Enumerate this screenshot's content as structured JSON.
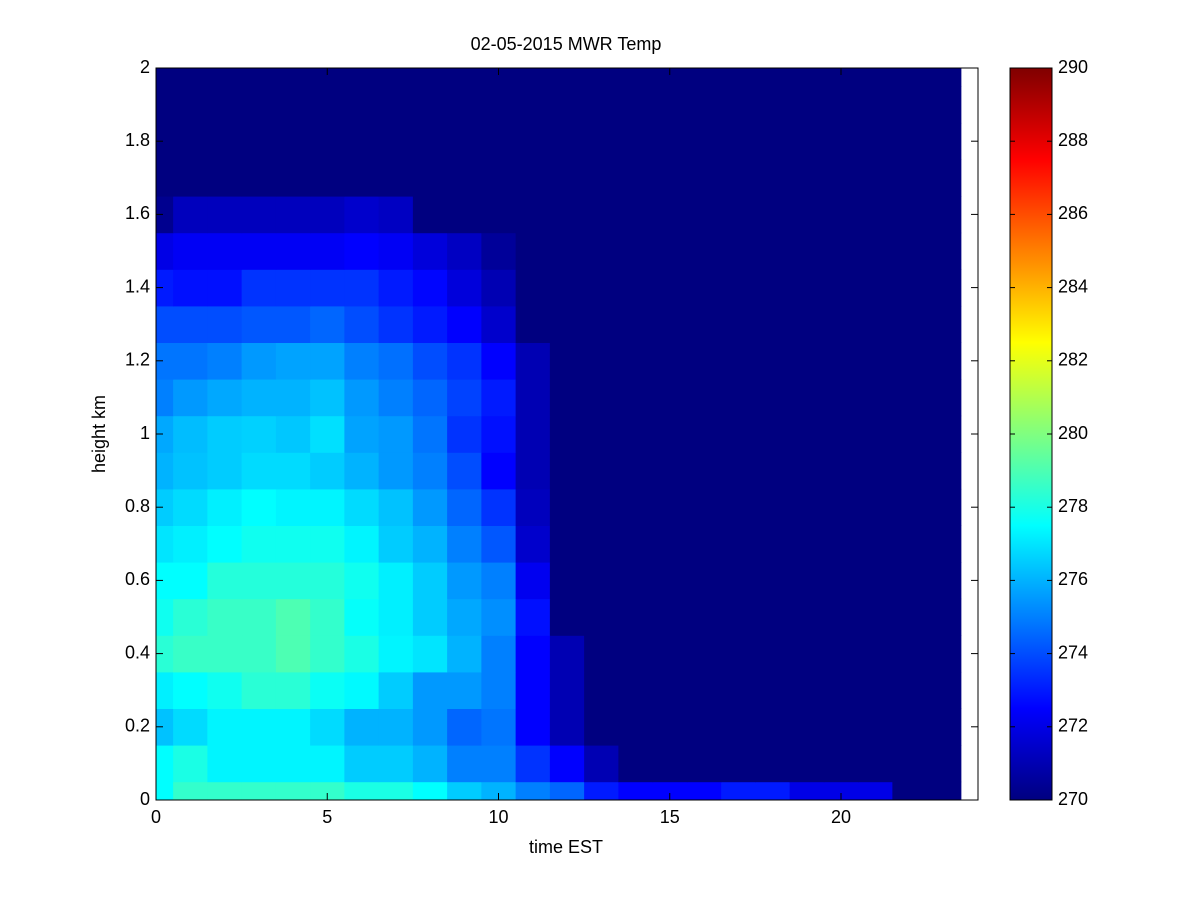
{
  "chart_data": {
    "type": "heatmap",
    "title": "02-05-2015 MWR Temp",
    "xlabel": "time EST",
    "ylabel": "height km",
    "colormap": "jet",
    "x": [
      0,
      1,
      2,
      3,
      4,
      5,
      6,
      7,
      8,
      9,
      10,
      11,
      12,
      13,
      14,
      15,
      16,
      17,
      18,
      19,
      20,
      21,
      22,
      23
    ],
    "y": [
      0,
      0.1,
      0.2,
      0.3,
      0.4,
      0.5,
      0.6,
      0.7,
      0.8,
      0.9,
      1,
      1.1,
      1.2,
      1.3,
      1.4,
      1.5,
      1.6,
      1.7,
      1.8,
      1.9,
      2
    ],
    "z": [
      [
        277.5,
        278.5,
        278.5,
        278.5,
        278.5,
        278.5,
        278,
        278,
        277.5,
        276.5,
        276,
        275,
        274.5,
        273,
        272.5,
        272.5,
        272.5,
        273,
        273,
        272,
        272,
        272,
        270,
        270
      ],
      [
        277.5,
        278,
        277.3,
        277.3,
        277.3,
        277.3,
        276.5,
        276.5,
        276,
        275,
        275,
        273.5,
        272.5,
        271,
        270,
        270,
        270,
        270,
        270,
        270,
        270,
        270,
        270,
        270
      ],
      [
        276.3,
        276.8,
        277.3,
        277.3,
        277.3,
        276.8,
        276,
        276,
        275.5,
        274.5,
        274.8,
        272.5,
        271,
        270,
        270,
        270,
        270,
        270,
        270,
        270,
        270,
        270,
        270,
        270
      ],
      [
        277.2,
        277.5,
        277.8,
        278.3,
        278.3,
        277.7,
        277.4,
        276.5,
        275.5,
        275.5,
        275,
        272.5,
        271,
        270,
        270,
        270,
        270,
        270,
        270,
        270,
        270,
        270,
        270,
        270
      ],
      [
        278.3,
        278.6,
        278.6,
        278.6,
        279,
        278.5,
        278,
        277.3,
        277,
        276,
        275,
        272.5,
        271,
        270,
        270,
        270,
        270,
        270,
        270,
        270,
        270,
        270,
        270,
        270
      ],
      [
        277.8,
        278.3,
        278.6,
        278.6,
        279,
        278.5,
        277.6,
        277.2,
        276.5,
        275.8,
        275.3,
        272.8,
        270,
        270,
        270,
        270,
        270,
        270,
        270,
        270,
        270,
        270,
        270,
        270
      ],
      [
        277.5,
        277.5,
        278.2,
        278.2,
        278.2,
        278.2,
        277.8,
        277.2,
        276.5,
        275.5,
        275,
        272.2,
        270,
        270,
        270,
        270,
        270,
        270,
        270,
        270,
        270,
        270,
        270,
        270
      ],
      [
        277,
        277.2,
        277.5,
        277.8,
        277.8,
        277.8,
        277.3,
        276.5,
        276,
        275,
        274.2,
        271.5,
        270,
        270,
        270,
        270,
        270,
        270,
        270,
        270,
        270,
        270,
        270,
        270
      ],
      [
        276.5,
        276.8,
        277.2,
        277.5,
        277.3,
        277.3,
        276.8,
        276.3,
        275.5,
        274.5,
        273.5,
        271.2,
        270,
        270,
        270,
        270,
        270,
        270,
        270,
        270,
        270,
        270,
        270,
        270
      ],
      [
        276,
        276.3,
        276.5,
        276.8,
        276.8,
        276.5,
        276,
        275.5,
        275,
        274,
        272.5,
        271,
        270,
        270,
        270,
        270,
        270,
        270,
        270,
        270,
        270,
        270,
        270,
        270
      ],
      [
        275.8,
        276.2,
        276.5,
        276.6,
        276.4,
        276.9,
        275.7,
        275.5,
        274.8,
        273.5,
        272.8,
        271,
        270,
        270,
        270,
        270,
        270,
        270,
        270,
        270,
        270,
        270,
        270,
        270
      ],
      [
        275,
        275.5,
        275.8,
        276,
        276,
        276.3,
        275.5,
        275,
        274.5,
        273.8,
        273,
        271,
        270,
        270,
        270,
        270,
        270,
        270,
        270,
        270,
        270,
        270,
        270,
        270
      ],
      [
        274.8,
        274.8,
        275,
        275.5,
        275.7,
        275.7,
        275,
        274.7,
        274,
        273.5,
        272.5,
        271,
        270,
        270,
        270,
        270,
        270,
        270,
        270,
        270,
        270,
        270,
        270,
        270
      ],
      [
        274,
        274,
        274,
        274.2,
        274.2,
        274.5,
        274,
        273.5,
        273,
        272.5,
        271.5,
        270,
        270,
        270,
        270,
        270,
        270,
        270,
        270,
        270,
        270,
        270,
        270,
        270
      ],
      [
        273,
        272.8,
        272.8,
        273.5,
        273.5,
        273.5,
        273.5,
        273,
        272.6,
        271.8,
        271,
        270,
        270,
        270,
        270,
        270,
        270,
        270,
        270,
        270,
        270,
        270,
        270,
        270
      ],
      [
        272,
        272.3,
        272.3,
        272.3,
        272.3,
        272.3,
        272.5,
        272.3,
        271.8,
        271.3,
        270.5,
        270,
        270,
        270,
        270,
        270,
        270,
        270,
        270,
        270,
        270,
        270,
        270,
        270
      ],
      [
        270.3,
        271.2,
        271.2,
        271.2,
        271.2,
        271.2,
        271.5,
        271.3,
        270,
        270,
        270,
        270,
        270,
        270,
        270,
        270,
        270,
        270,
        270,
        270,
        270,
        270,
        270,
        270
      ],
      [
        270,
        270,
        270,
        270,
        270,
        270,
        270,
        270,
        270,
        270,
        270,
        270,
        270,
        270,
        270,
        270,
        270,
        270,
        270,
        270,
        270,
        270,
        270,
        270
      ],
      [
        270,
        270,
        270,
        270,
        270,
        270,
        270,
        270,
        270,
        270,
        270,
        270,
        270,
        270,
        270,
        270,
        270,
        270,
        270,
        270,
        270,
        270,
        270,
        270
      ],
      [
        270,
        270,
        270,
        270,
        270,
        270,
        270,
        270,
        270,
        270,
        270,
        270,
        270,
        270,
        270,
        270,
        270,
        270,
        270,
        270,
        270,
        270,
        270,
        270
      ],
      [
        270,
        270,
        270,
        270,
        270,
        270,
        270,
        270,
        270,
        270,
        270,
        270,
        270,
        270,
        270,
        270,
        270,
        270,
        270,
        270,
        270,
        270,
        270,
        270
      ]
    ],
    "xlim": [
      0,
      24
    ],
    "xticks": [
      0,
      5,
      10,
      15,
      20
    ],
    "ylim": [
      0,
      2
    ],
    "yticks": [
      0,
      0.2,
      0.4,
      0.6,
      0.8,
      1,
      1.2,
      1.4,
      1.6,
      1.8,
      2
    ],
    "zlim": [
      270,
      290
    ],
    "zticks": [
      270,
      272,
      274,
      276,
      278,
      280,
      282,
      284,
      286,
      288,
      290
    ]
  }
}
